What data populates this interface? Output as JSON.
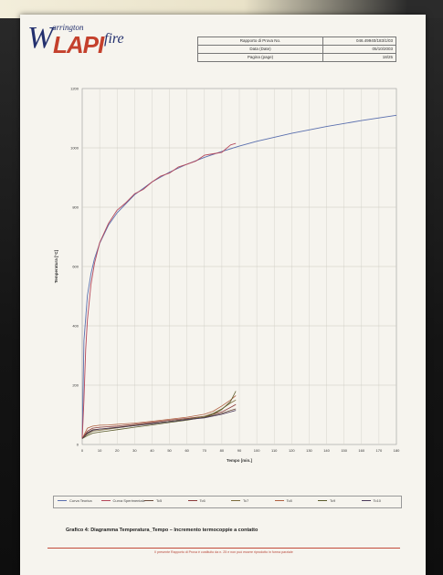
{
  "header": {
    "logo": {
      "w": "W",
      "warrington": "arrington",
      "lapi": "LAPI",
      "fire": "fire"
    },
    "info_rows": [
      {
        "label": "Rapporto di Prova No.",
        "value": "046.49940/183/1/03"
      },
      {
        "label": "Data (Date)",
        "value": "05/10/2003"
      },
      {
        "label": "Pagina (page)",
        "value": "18/25"
      }
    ]
  },
  "chart_data": {
    "type": "line",
    "title": "",
    "xlabel": "Tempo [min.]",
    "ylabel": "Temperatura [°C]",
    "xlim": [
      0,
      180
    ],
    "ylim": [
      0,
      1200
    ],
    "x_ticks": [
      "0",
      "10",
      "20",
      "30",
      "40",
      "50",
      "60",
      "70",
      "80",
      "90",
      "100",
      "110",
      "120",
      "130",
      "140",
      "150",
      "160",
      "170",
      "180"
    ],
    "y_ticks": [
      "0",
      "200",
      "400",
      "600",
      "800",
      "1000",
      "1200"
    ],
    "grid": true,
    "series": [
      {
        "name": "Curva Teorica",
        "color": "#5a6fae",
        "x": [
          0,
          1,
          3,
          5,
          7,
          10,
          15,
          20,
          30,
          40,
          50,
          60,
          70,
          80,
          90,
          100,
          120,
          140,
          160,
          180
        ],
        "y": [
          20,
          350,
          502,
          576,
          626,
          678,
          739,
          781,
          842,
          885,
          918,
          945,
          968,
          988,
          1006,
          1022,
          1049,
          1072,
          1092,
          1110
        ]
      },
      {
        "name": "Curva Sperimentale",
        "color": "#b5475a",
        "x": [
          0,
          1,
          2,
          3,
          5,
          7,
          10,
          15,
          20,
          25,
          30,
          35,
          40,
          45,
          50,
          55,
          60,
          65,
          70,
          75,
          80,
          85,
          88
        ],
        "y": [
          20,
          150,
          320,
          420,
          540,
          610,
          680,
          745,
          790,
          815,
          845,
          860,
          885,
          905,
          915,
          935,
          945,
          955,
          975,
          980,
          985,
          1010,
          1015
        ]
      },
      {
        "name": "Tc5",
        "color": "#6a4a3a",
        "x": [
          0,
          3,
          6,
          10,
          15,
          20,
          30,
          40,
          50,
          60,
          70,
          75,
          80,
          85,
          88
        ],
        "y": [
          20,
          40,
          50,
          52,
          55,
          58,
          65,
          72,
          78,
          85,
          92,
          98,
          105,
          115,
          120
        ]
      },
      {
        "name": "Tc6",
        "color": "#8b3a3a",
        "x": [
          0,
          3,
          6,
          10,
          15,
          20,
          30,
          40,
          50,
          60,
          70,
          75,
          80,
          85,
          88
        ],
        "y": [
          20,
          45,
          55,
          58,
          60,
          62,
          68,
          75,
          82,
          88,
          95,
          102,
          110,
          125,
          135
        ]
      },
      {
        "name": "Tc7",
        "color": "#7a6a3a",
        "x": [
          0,
          3,
          6,
          10,
          15,
          20,
          30,
          40,
          50,
          60,
          70,
          75,
          80,
          85,
          88
        ],
        "y": [
          20,
          35,
          45,
          48,
          52,
          56,
          64,
          70,
          78,
          86,
          95,
          105,
          120,
          140,
          150
        ]
      },
      {
        "name": "Tc8",
        "color": "#b06040",
        "x": [
          0,
          3,
          6,
          10,
          15,
          20,
          30,
          40,
          50,
          60,
          70,
          75,
          80,
          85,
          88
        ],
        "y": [
          20,
          55,
          62,
          65,
          66,
          68,
          72,
          78,
          85,
          92,
          102,
          112,
          130,
          150,
          165
        ]
      },
      {
        "name": "Tc9",
        "color": "#5a5a2a",
        "x": [
          0,
          3,
          6,
          10,
          15,
          20,
          30,
          40,
          50,
          60,
          70,
          75,
          80,
          85,
          88
        ],
        "y": [
          20,
          30,
          38,
          42,
          46,
          50,
          58,
          66,
          74,
          82,
          92,
          102,
          118,
          145,
          180
        ]
      },
      {
        "name": "Tc10",
        "color": "#4a3a5a",
        "x": [
          0,
          3,
          6,
          10,
          15,
          20,
          30,
          40,
          50,
          60,
          70,
          75,
          80,
          85,
          88
        ],
        "y": [
          20,
          38,
          48,
          52,
          54,
          57,
          63,
          70,
          77,
          84,
          90,
          96,
          102,
          110,
          115
        ]
      }
    ]
  },
  "caption": "Grafico 4: Diagramma Temperatura_Tempo – Incremento termocoppie a contatto",
  "footnote": "Il presente Rapporto di Prova è costituito da n. 25 e non può essere riprodotto in forma parziale"
}
